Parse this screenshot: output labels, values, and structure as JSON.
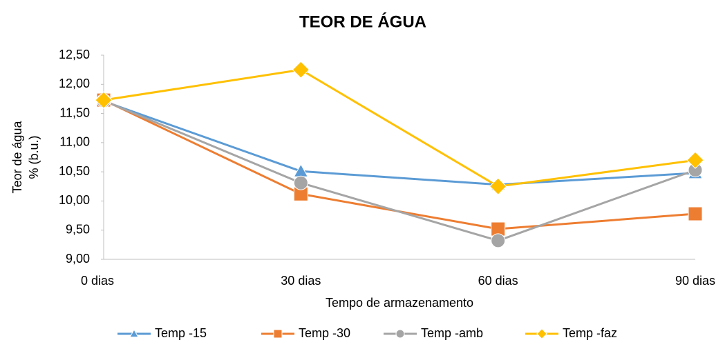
{
  "chart_data": {
    "type": "line",
    "title": "TEOR DE ÁGUA",
    "x_label": "Tempo de armazenamento",
    "y_label": [
      "Teor de água",
      "% (b.u.)"
    ],
    "categories": [
      "0 dias",
      "30 dias",
      "60 dias",
      "90 dias"
    ],
    "series": [
      {
        "name": "Temp -15",
        "color": "#5b9bd5",
        "marker": "triangle",
        "values": [
          11.71,
          10.51,
          10.28,
          10.48
        ]
      },
      {
        "name": "Temp -30",
        "color": "#ed7d31",
        "marker": "square",
        "values": [
          11.73,
          10.12,
          9.52,
          9.78
        ]
      },
      {
        "name": "Temp -amb",
        "color": "#a5a5a5",
        "marker": "circle",
        "values": [
          11.72,
          10.31,
          9.32,
          10.53
        ]
      },
      {
        "name": "Temp -faz",
        "color": "#ffc000",
        "marker": "diamond",
        "values": [
          11.73,
          12.25,
          10.25,
          10.7
        ]
      }
    ],
    "ylim": [
      9,
      12.5
    ],
    "yticks": [
      {
        "value": 9,
        "label": "9,00"
      },
      {
        "value": 9.5,
        "label": "9,50"
      },
      {
        "value": 10,
        "label": "10,00"
      },
      {
        "value": 10.5,
        "label": "10,50"
      },
      {
        "value": 11,
        "label": "11,00"
      },
      {
        "value": 11.5,
        "label": "11,50"
      },
      {
        "value": 12,
        "label": "12,00"
      },
      {
        "value": 12.5,
        "label": "12,50"
      }
    ],
    "legend": "bottom"
  }
}
